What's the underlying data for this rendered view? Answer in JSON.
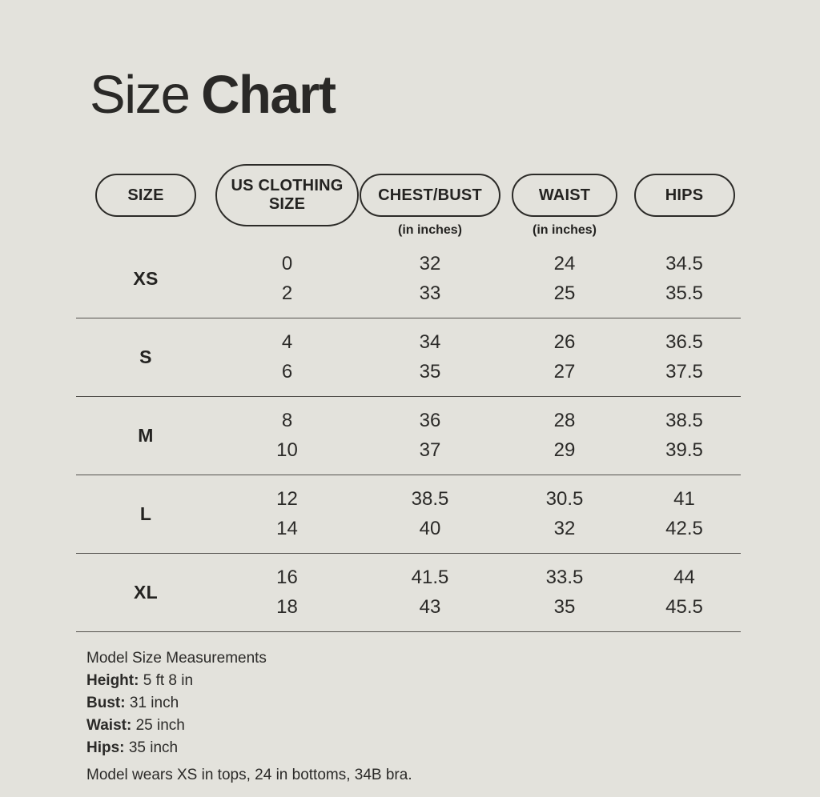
{
  "colors": {
    "background": "#e3e2dc",
    "text": "#2a2927",
    "divider": "#53514d",
    "pill_border": "#2c2b28"
  },
  "title": {
    "regular": "Size",
    "bold": "Chart"
  },
  "table": {
    "headers": [
      {
        "label": "SIZE",
        "sub": ""
      },
      {
        "label": "US CLOTHING SIZE",
        "sub": ""
      },
      {
        "label": "CHEST/BUST",
        "sub": "(in inches)"
      },
      {
        "label": "WAIST",
        "sub": "(in inches)"
      },
      {
        "label": "HIPS",
        "sub": ""
      }
    ],
    "rows": [
      {
        "size": "XS",
        "us": [
          "0",
          "2"
        ],
        "chest": [
          "32",
          "33"
        ],
        "waist": [
          "24",
          "25"
        ],
        "hips": [
          "34.5",
          "35.5"
        ]
      },
      {
        "size": "S",
        "us": [
          "4",
          "6"
        ],
        "chest": [
          "34",
          "35"
        ],
        "waist": [
          "26",
          "27"
        ],
        "hips": [
          "36.5",
          "37.5"
        ]
      },
      {
        "size": "M",
        "us": [
          "8",
          "10"
        ],
        "chest": [
          "36",
          "37"
        ],
        "waist": [
          "28",
          "29"
        ],
        "hips": [
          "38.5",
          "39.5"
        ]
      },
      {
        "size": "L",
        "us": [
          "12",
          "14"
        ],
        "chest": [
          "38.5",
          "40"
        ],
        "waist": [
          "30.5",
          "32"
        ],
        "hips": [
          "41",
          "42.5"
        ]
      },
      {
        "size": "XL",
        "us": [
          "16",
          "18"
        ],
        "chest": [
          "41.5",
          "43"
        ],
        "waist": [
          "33.5",
          "35"
        ],
        "hips": [
          "44",
          "45.5"
        ]
      }
    ]
  },
  "footer": {
    "heading": "Model Size Measurements",
    "measurements": [
      {
        "label": "Height:",
        "value": "5 ft 8 in"
      },
      {
        "label": "Bust:",
        "value": "31 inch"
      },
      {
        "label": "Waist:",
        "value": "25 inch"
      },
      {
        "label": "Hips:",
        "value": "35 inch"
      }
    ],
    "note": "Model wears XS in tops, 24 in bottoms, 34B bra."
  },
  "chart_data": {
    "type": "table",
    "title": "Size Chart",
    "columns": [
      "SIZE",
      "US CLOTHING SIZE",
      "CHEST/BUST (in inches)",
      "WAIST (in inches)",
      "HIPS"
    ],
    "rows": [
      [
        "XS",
        "0 / 2",
        "32 / 33",
        "24 / 25",
        "34.5 / 35.5"
      ],
      [
        "S",
        "4 / 6",
        "34 / 35",
        "26 / 27",
        "36.5 / 37.5"
      ],
      [
        "M",
        "8 / 10",
        "36 / 37",
        "28 / 29",
        "38.5 / 39.5"
      ],
      [
        "L",
        "12 / 14",
        "38.5 / 40",
        "30.5 / 32",
        "41 / 42.5"
      ],
      [
        "XL",
        "16 / 18",
        "41.5 / 43",
        "33.5 / 35",
        "44 / 45.5"
      ]
    ]
  }
}
